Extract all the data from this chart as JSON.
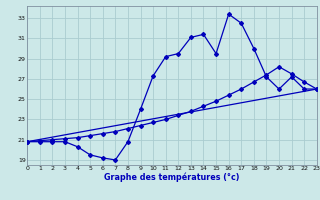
{
  "xlabel": "Graphe des températures (°c)",
  "bg_color": "#cce8e8",
  "grid_color": "#aaccd0",
  "line_color": "#0000bb",
  "xlim": [
    0,
    23
  ],
  "ylim": [
    18.5,
    34.2
  ],
  "xticks": [
    0,
    1,
    2,
    3,
    4,
    5,
    6,
    7,
    8,
    9,
    10,
    11,
    12,
    13,
    14,
    15,
    16,
    17,
    18,
    19,
    20,
    21,
    22,
    23
  ],
  "yticks": [
    19,
    21,
    23,
    25,
    27,
    29,
    31,
    33
  ],
  "line1_x": [
    0,
    1,
    2,
    3,
    4,
    5,
    6,
    7,
    8,
    9,
    10,
    11,
    12,
    13,
    14,
    15,
    16,
    17,
    18,
    19,
    20,
    21,
    22,
    23
  ],
  "line1_y": [
    20.8,
    20.8,
    20.8,
    20.8,
    20.3,
    19.5,
    19.2,
    19.0,
    20.8,
    24.0,
    27.3,
    29.2,
    29.5,
    31.1,
    31.4,
    29.5,
    33.4,
    32.5,
    30.0,
    27.2,
    26.0,
    27.2,
    26.0,
    26.0
  ],
  "line2_x": [
    0,
    23
  ],
  "line2_y": [
    20.8,
    26.0
  ],
  "line3_x": [
    0,
    1,
    2,
    3,
    4,
    5,
    6,
    7,
    8,
    9,
    10,
    11,
    12,
    13,
    14,
    15,
    16,
    17,
    18,
    19,
    20,
    21,
    22,
    23
  ],
  "line3_y": [
    20.8,
    20.9,
    21.0,
    21.1,
    21.2,
    21.4,
    21.6,
    21.8,
    22.1,
    22.4,
    22.7,
    23.0,
    23.4,
    23.8,
    24.3,
    24.8,
    25.4,
    26.0,
    26.7,
    27.4,
    28.2,
    27.5,
    26.7,
    26.0
  ]
}
